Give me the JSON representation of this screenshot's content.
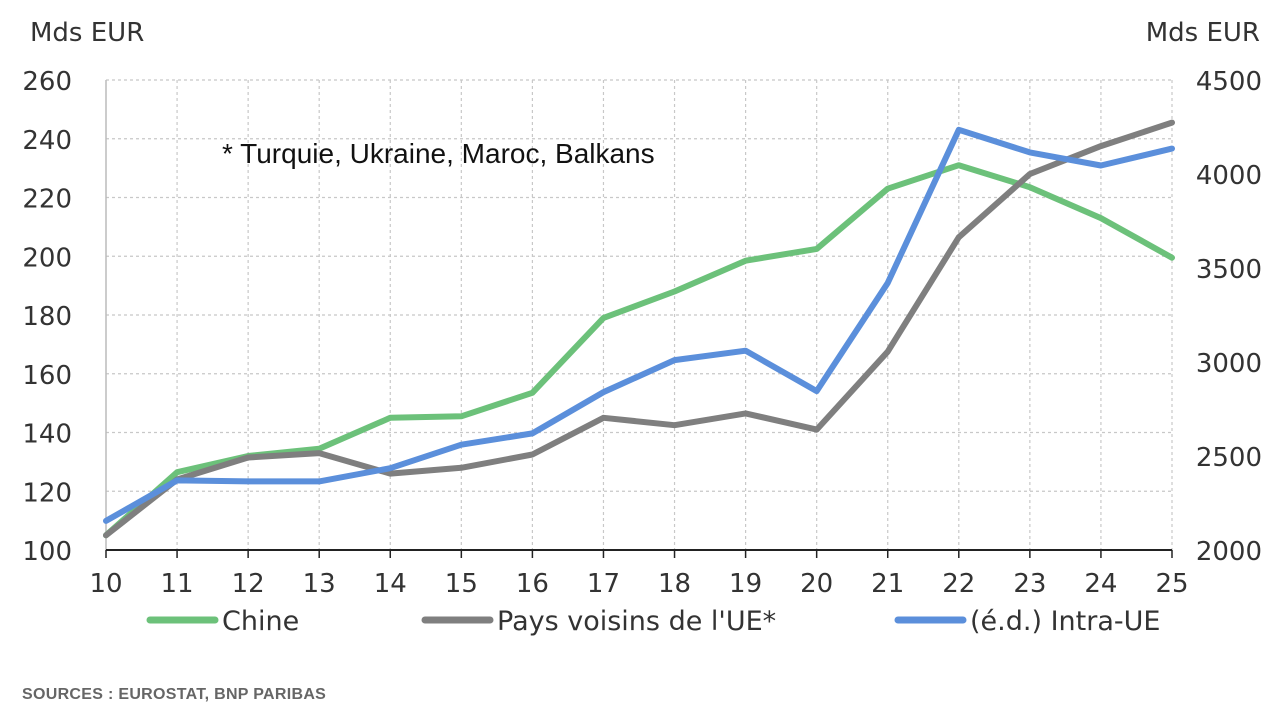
{
  "chart_data": {
    "type": "line",
    "annotation": "* Turquie, Ukraine, Maroc, Balkans",
    "y_left_label": "Mds EUR",
    "y_right_label": "Mds EUR",
    "source": "SOURCES : EUROSTAT, BNP PARIBAS",
    "x": [
      "10",
      "11",
      "12",
      "13",
      "14",
      "15",
      "16",
      "17",
      "18",
      "19",
      "20",
      "21",
      "22",
      "23",
      "24",
      "25"
    ],
    "y_left": {
      "min": 100,
      "max": 260,
      "ticks": [
        "100",
        "120",
        "140",
        "160",
        "180",
        "200",
        "220",
        "240",
        "260"
      ]
    },
    "y_right": {
      "min": 2000,
      "max": 4500,
      "ticks": [
        "2000",
        "2500",
        "3000",
        "3500",
        "4000",
        "4500"
      ]
    },
    "grid": true,
    "legend_position": "bottom",
    "series": [
      {
        "name": "Chine",
        "axis": "left",
        "color": "#6CC17A",
        "values": [
          105,
          126.5,
          132,
          134.5,
          145,
          145.5,
          153.5,
          179,
          188,
          198.5,
          202.5,
          223,
          231,
          223.5,
          213,
          199.5
        ]
      },
      {
        "name": "Pays voisins de l'UE*",
        "axis": "left",
        "color": "#7F7F7F",
        "values": [
          105,
          124,
          131.5,
          133,
          126,
          128,
          132.5,
          145,
          142.5,
          146.5,
          141,
          167.5,
          206.5,
          228,
          237.5,
          245.5
        ]
      },
      {
        "name": "(é.d.) Intra-UE",
        "axis": "right",
        "color": "#5B8FDB",
        "values": [
          2155,
          2370,
          2365,
          2365,
          2435,
          2560,
          2620,
          2840,
          3010,
          3060,
          2845,
          3420,
          4235,
          4115,
          4045,
          4135
        ]
      }
    ]
  }
}
